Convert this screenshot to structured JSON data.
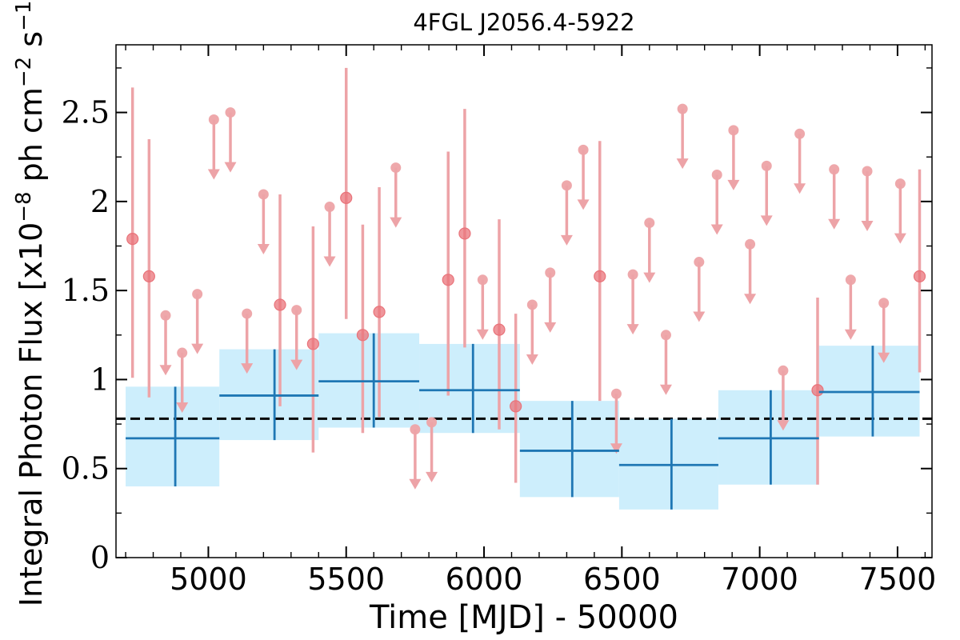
{
  "chart_data": {
    "type": "scatter",
    "title": "4FGL J2056.4-5922",
    "xlabel": "Time [MJD] - 50000",
    "ylabel": "Integral Photon Flux [x10",
    "ylabel_exp1": "−8",
    "ylabel_mid": " ph cm",
    "ylabel_exp2": "−2",
    "ylabel_mid2": " s",
    "ylabel_exp3": "−1",
    "ylabel_end": "]",
    "xlim": [
      4665,
      7625
    ],
    "ylim": [
      0,
      2.88
    ],
    "x_ticks": [
      5000,
      5500,
      6000,
      6500,
      7000,
      7500
    ],
    "x_tick_labels": [
      "5000",
      "5500",
      "6000",
      "6500",
      "7000",
      "7500"
    ],
    "y_ticks": [
      0,
      0.5,
      1,
      1.5,
      2,
      2.5
    ],
    "y_tick_labels": [
      "0",
      "0.5",
      "1",
      "1.5",
      "2",
      "2.5"
    ],
    "grid": false,
    "legend": "none",
    "colors": {
      "binned_line": "#1f77b4",
      "binned_band": "#cdeefc",
      "monthly_point": "#e9737a",
      "monthly_errorbar": "#eda3a7",
      "average_line": "#000000"
    },
    "average_flux": 0.78,
    "binned_series": [
      {
        "x": 4880,
        "x_lo": 4700,
        "x_hi": 5040,
        "y": 0.67,
        "y_lo": 0.4,
        "y_hi": 0.96
      },
      {
        "x": 5240,
        "x_lo": 5040,
        "x_hi": 5400,
        "y": 0.91,
        "y_lo": 0.66,
        "y_hi": 1.17
      },
      {
        "x": 5600,
        "x_lo": 5400,
        "x_hi": 5765,
        "y": 0.99,
        "y_lo": 0.73,
        "y_hi": 1.26
      },
      {
        "x": 5960,
        "x_lo": 5765,
        "x_hi": 6130,
        "y": 0.94,
        "y_lo": 0.7,
        "y_hi": 1.2
      },
      {
        "x": 6320,
        "x_lo": 6130,
        "x_hi": 6490,
        "y": 0.6,
        "y_lo": 0.34,
        "y_hi": 0.88
      },
      {
        "x": 6680,
        "x_lo": 6490,
        "x_hi": 6850,
        "y": 0.52,
        "y_lo": 0.27,
        "y_hi": 0.78
      },
      {
        "x": 7040,
        "x_lo": 6850,
        "x_hi": 7215,
        "y": 0.67,
        "y_lo": 0.41,
        "y_hi": 0.94
      },
      {
        "x": 7410,
        "x_lo": 7215,
        "x_hi": 7580,
        "y": 0.93,
        "y_lo": 0.68,
        "y_hi": 1.19
      }
    ],
    "monthly_detections": [
      {
        "x": 4725,
        "y": 1.79,
        "y_lo": 1.01,
        "y_hi": 2.64
      },
      {
        "x": 4785,
        "y": 1.58,
        "y_lo": 0.9,
        "y_hi": 2.35
      },
      {
        "x": 5260,
        "y": 1.42,
        "y_lo": 0.85,
        "y_hi": 2.04
      },
      {
        "x": 5380,
        "y": 1.2,
        "y_lo": 0.59,
        "y_hi": 1.86
      },
      {
        "x": 5500,
        "y": 2.02,
        "y_lo": 1.34,
        "y_hi": 2.75
      },
      {
        "x": 5560,
        "y": 1.25,
        "y_lo": 0.7,
        "y_hi": 1.87
      },
      {
        "x": 5620,
        "y": 1.38,
        "y_lo": 0.79,
        "y_hi": 2.08
      },
      {
        "x": 5870,
        "y": 1.56,
        "y_lo": 0.91,
        "y_hi": 2.28
      },
      {
        "x": 5930,
        "y": 1.82,
        "y_lo": 1.18,
        "y_hi": 2.52
      },
      {
        "x": 6055,
        "y": 1.28,
        "y_lo": 0.72,
        "y_hi": 1.9
      },
      {
        "x": 6115,
        "y": 0.85,
        "y_lo": 0.42,
        "y_hi": 1.37
      },
      {
        "x": 6420,
        "y": 1.58,
        "y_lo": 0.88,
        "y_hi": 2.34
      },
      {
        "x": 7210,
        "y": 0.94,
        "y_lo": 0.41,
        "y_hi": 1.46
      },
      {
        "x": 7580,
        "y": 1.58,
        "y_lo": 1.04,
        "y_hi": 2.18
      }
    ],
    "monthly_upper_limits": [
      {
        "x": 4845,
        "y": 1.36
      },
      {
        "x": 4905,
        "y": 1.15
      },
      {
        "x": 4960,
        "y": 1.48
      },
      {
        "x": 5020,
        "y": 2.46
      },
      {
        "x": 5080,
        "y": 2.5
      },
      {
        "x": 5140,
        "y": 1.37
      },
      {
        "x": 5200,
        "y": 2.04
      },
      {
        "x": 5320,
        "y": 1.39
      },
      {
        "x": 5440,
        "y": 1.97
      },
      {
        "x": 5680,
        "y": 2.19
      },
      {
        "x": 5750,
        "y": 0.72
      },
      {
        "x": 5810,
        "y": 0.76
      },
      {
        "x": 5995,
        "y": 1.56
      },
      {
        "x": 6175,
        "y": 1.42
      },
      {
        "x": 6240,
        "y": 1.6
      },
      {
        "x": 6300,
        "y": 2.09
      },
      {
        "x": 6360,
        "y": 2.29
      },
      {
        "x": 6480,
        "y": 0.92
      },
      {
        "x": 6540,
        "y": 1.59
      },
      {
        "x": 6600,
        "y": 1.88
      },
      {
        "x": 6660,
        "y": 1.25
      },
      {
        "x": 6720,
        "y": 2.52
      },
      {
        "x": 6780,
        "y": 1.66
      },
      {
        "x": 6845,
        "y": 2.15
      },
      {
        "x": 6905,
        "y": 2.4
      },
      {
        "x": 6965,
        "y": 1.76
      },
      {
        "x": 7025,
        "y": 2.2
      },
      {
        "x": 7085,
        "y": 1.05
      },
      {
        "x": 7145,
        "y": 2.38
      },
      {
        "x": 7270,
        "y": 2.18
      },
      {
        "x": 7330,
        "y": 1.56
      },
      {
        "x": 7390,
        "y": 2.17
      },
      {
        "x": 7450,
        "y": 1.43
      },
      {
        "x": 7510,
        "y": 2.1
      }
    ]
  }
}
